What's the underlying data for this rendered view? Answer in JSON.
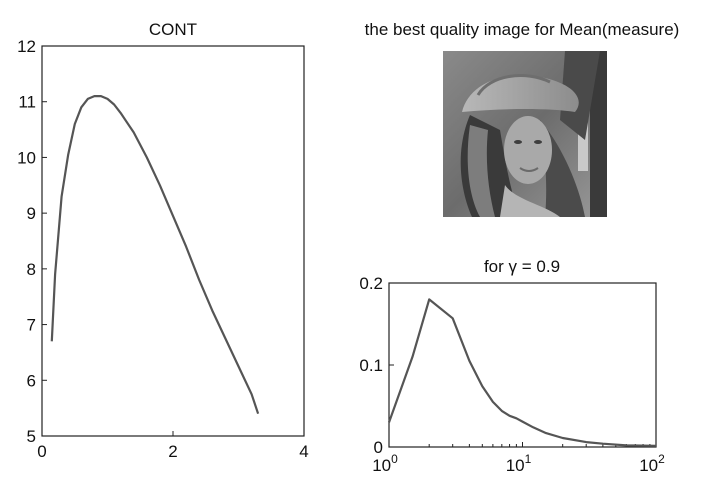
{
  "chart_data": [
    {
      "type": "line",
      "title": "CONT",
      "xlabel": "",
      "ylabel": "",
      "xlim": [
        0,
        4
      ],
      "ylim": [
        5,
        12
      ],
      "xticks": [
        "0",
        "2",
        "4"
      ],
      "yticks": [
        "5",
        "6",
        "7",
        "8",
        "9",
        "10",
        "11",
        "12"
      ],
      "grid": false,
      "series": [
        {
          "x": [
            0.15,
            0.2,
            0.3,
            0.4,
            0.5,
            0.6,
            0.7,
            0.8,
            0.9,
            1.0,
            1.1,
            1.2,
            1.4,
            1.6,
            1.8,
            2.0,
            2.2,
            2.4,
            2.6,
            2.8,
            3.0,
            3.2,
            3.3
          ],
          "y": [
            6.7,
            7.9,
            9.3,
            10.05,
            10.6,
            10.9,
            11.05,
            11.1,
            11.1,
            11.05,
            10.95,
            10.8,
            10.45,
            10.0,
            9.5,
            8.95,
            8.4,
            7.8,
            7.25,
            6.75,
            6.25,
            5.75,
            5.4
          ]
        }
      ]
    },
    {
      "type": "line",
      "title": "for γ = 0.9",
      "xlabel": "",
      "ylabel": "",
      "xscale": "log",
      "xlim": [
        1,
        100
      ],
      "ylim": [
        0,
        0.2
      ],
      "xticks": [
        "10^0",
        "10^1",
        "10^2"
      ],
      "yticks": [
        "0",
        "0.1",
        "0.2"
      ],
      "grid": false,
      "series": [
        {
          "x": [
            1,
            1.5,
            2,
            3,
            4,
            5,
            6,
            7,
            8,
            9,
            10,
            12,
            15,
            20,
            30,
            40,
            60,
            100
          ],
          "y": [
            0.03,
            0.11,
            0.18,
            0.157,
            0.105,
            0.074,
            0.055,
            0.044,
            0.038,
            0.035,
            0.031,
            0.024,
            0.017,
            0.011,
            0.006,
            0.004,
            0.002,
            0.0015
          ]
        }
      ]
    }
  ],
  "image_panel": {
    "title": "the best quality image for Mean(measure)"
  }
}
